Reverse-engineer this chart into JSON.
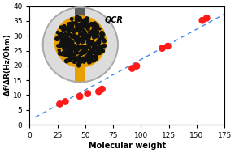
{
  "scatter_x": [
    27,
    32,
    45,
    52,
    62,
    65,
    92,
    96,
    119,
    124,
    155,
    159
  ],
  "scatter_y": [
    7.0,
    7.8,
    9.6,
    10.5,
    11.2,
    12.0,
    19.0,
    19.8,
    25.8,
    26.5,
    35.2,
    36.0
  ],
  "fit_x": [
    5,
    175
  ],
  "fit_slope": 0.205,
  "fit_intercept": 1.5,
  "scatter_color": "#ff1a1a",
  "line_color": "#4488ee",
  "xlabel": "Molecular weight",
  "ylabel": "-Δf/ΔR(Hz/Ohm)",
  "xlim": [
    0,
    175
  ],
  "ylim": [
    0,
    40
  ],
  "xticks": [
    0,
    25,
    50,
    75,
    100,
    125,
    150,
    175
  ],
  "yticks": [
    0,
    5,
    10,
    15,
    20,
    25,
    30,
    35,
    40
  ],
  "dot_size": 40,
  "inset_outer_color": "#dcdcdc",
  "inset_outer_edge": "#aaaaaa",
  "inset_gold_color": "#e8a000",
  "inset_gray_color": "#5a5a5a",
  "inset_nano_color": "#111111",
  "qcr_label": "QCR"
}
